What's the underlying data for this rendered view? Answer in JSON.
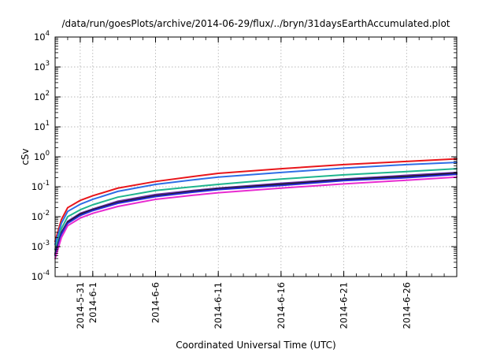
{
  "chart_data": {
    "type": "line",
    "title": "/data/run/goesPlots/archive/2014-06-29/flux/../bryn/31daysEarthAccumulated.plot",
    "xlabel": "Coordinated Universal Time (UTC)",
    "ylabel": "cSv",
    "x_axis": {
      "kind": "date",
      "range": [
        "2014-05-29",
        "2014-06-30"
      ],
      "ticks": [
        "2014-5-31",
        "2014-6-1",
        "2014-6-6",
        "2014-6-11",
        "2014-6-16",
        "2014-6-21",
        "2014-6-26"
      ],
      "tick_dates": [
        "2014-05-31",
        "2014-06-01",
        "2014-06-06",
        "2014-06-11",
        "2014-06-16",
        "2014-06-21",
        "2014-06-26"
      ]
    },
    "y_axis": {
      "scale": "log",
      "range": [
        0.0001,
        10000
      ],
      "tick_exponents": [
        -4,
        -3,
        -2,
        -1,
        0,
        1,
        2,
        3,
        4
      ]
    },
    "grid": true,
    "legend": "none",
    "series_x": [
      "2014-05-29",
      "2014-05-29T12:00",
      "2014-05-30",
      "2014-05-31",
      "2014-06-01",
      "2014-06-03",
      "2014-06-06",
      "2014-06-09",
      "2014-06-11",
      "2014-06-16",
      "2014-06-21",
      "2014-06-26",
      "2014-06-30"
    ],
    "series": [
      {
        "color": "#e8161b",
        "values": [
          0.0015,
          0.008,
          0.02,
          0.035,
          0.05,
          0.09,
          0.15,
          0.22,
          0.28,
          0.4,
          0.55,
          0.7,
          0.85
        ]
      },
      {
        "color": "#2e6ee6",
        "values": [
          0.0012,
          0.006,
          0.015,
          0.026,
          0.038,
          0.07,
          0.12,
          0.17,
          0.21,
          0.3,
          0.42,
          0.55,
          0.65
        ]
      },
      {
        "color": "#1fb58e",
        "values": [
          0.0008,
          0.004,
          0.01,
          0.017,
          0.025,
          0.045,
          0.075,
          0.1,
          0.12,
          0.18,
          0.25,
          0.32,
          0.4
        ]
      },
      {
        "color": "#6b2aa8",
        "values": [
          0.0006,
          0.003,
          0.007,
          0.013,
          0.018,
          0.033,
          0.055,
          0.075,
          0.09,
          0.13,
          0.18,
          0.24,
          0.3
        ]
      },
      {
        "color": "#1a1a1a",
        "values": [
          0.00055,
          0.0028,
          0.0065,
          0.012,
          0.017,
          0.03,
          0.05,
          0.07,
          0.085,
          0.12,
          0.17,
          0.22,
          0.28
        ]
      },
      {
        "color": "#2a2ad8",
        "values": [
          0.0005,
          0.0026,
          0.006,
          0.011,
          0.016,
          0.028,
          0.047,
          0.066,
          0.08,
          0.11,
          0.16,
          0.2,
          0.26
        ]
      },
      {
        "color": "#e82bd0",
        "values": [
          0.0004,
          0.002,
          0.005,
          0.009,
          0.013,
          0.022,
          0.038,
          0.052,
          0.063,
          0.09,
          0.125,
          0.165,
          0.21
        ]
      }
    ]
  }
}
